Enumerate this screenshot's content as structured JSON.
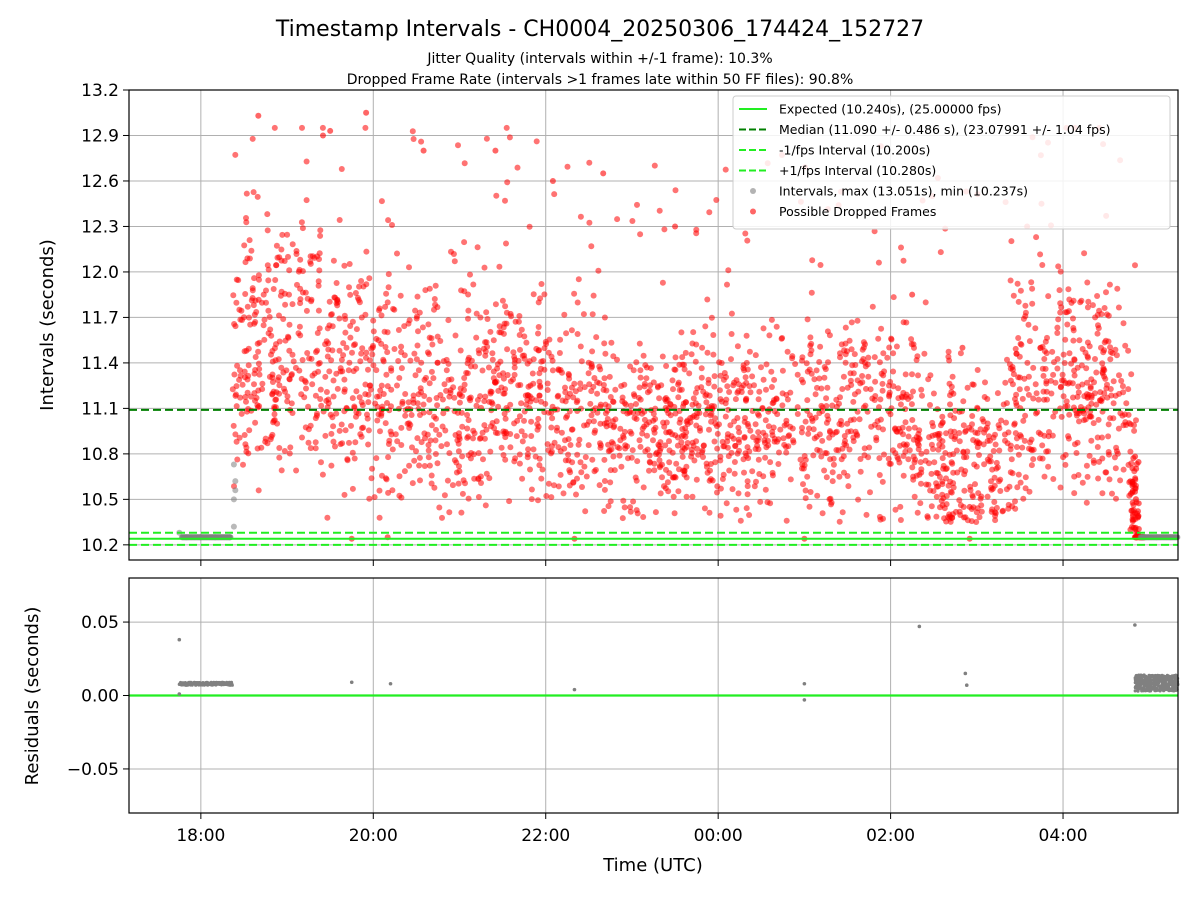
{
  "title": "Timestamp Intervals - CH0004_20250306_174424_152727",
  "subtitle_1": "Jitter Quality (intervals within +/-1 frame): 10.3%",
  "subtitle_2": "Dropped Frame Rate (intervals >1 frames late within 50 FF files): 90.8%",
  "colors": {
    "expected": "#22ee22",
    "median": "#007f00",
    "interval": "#808080",
    "dropped": "#ff0000",
    "grid": "#b0b0b0"
  },
  "chart_data": [
    {
      "type": "scatter",
      "ylabel": "Intervals (seconds)",
      "xlim": [
        "17:10",
        "05:20"
      ],
      "ylim": [
        10.1,
        13.2
      ],
      "y_ticks": [
        "10.2",
        "10.5",
        "10.8",
        "11.1",
        "11.4",
        "11.7",
        "12.0",
        "12.3",
        "12.6",
        "12.9",
        "13.2"
      ],
      "grid": true,
      "legend_position": "top-right",
      "legend": [
        "Expected (10.240s), (25.00000 fps)",
        "Median (11.090 +/- 0.486 s), (23.07991 +/- 1.04 fps)",
        "-1/fps Interval (10.200s)",
        "+1/fps Interval (10.280s)",
        "Intervals, max (13.051s), min (10.237s)",
        "Possible Dropped Frames"
      ],
      "reference_lines": [
        {
          "name": "Expected (10.240s), (25.00000 fps)",
          "y": 10.24,
          "style": "solid"
        },
        {
          "name": "Median (11.090 +/- 0.486 s), (23.07991 +/- 1.04 fps)",
          "y": 11.09,
          "style": "dashed"
        },
        {
          "name": "-1/fps Interval (10.200s)",
          "y": 10.2,
          "style": "dashed"
        },
        {
          "name": "+1/fps Interval (10.280s)",
          "y": 10.28,
          "style": "dashed"
        }
      ],
      "intervals_series": {
        "name": "Intervals, max (13.051s), min (10.237s)",
        "description_points": [
          [
            "17:45",
            10.28
          ],
          [
            "17:50",
            10.25
          ],
          [
            "18:00",
            10.25
          ],
          [
            "18:10",
            10.25
          ],
          [
            "18:20",
            10.25
          ],
          [
            "18:23",
            10.32
          ],
          [
            "18:23",
            10.5
          ],
          [
            "18:24",
            10.56
          ],
          [
            "18:24",
            10.62
          ],
          [
            "18:23",
            10.73
          ],
          [
            "04:55",
            10.25
          ],
          [
            "05:05",
            10.25
          ],
          [
            "05:15",
            10.25
          ]
        ]
      },
      "dropped_series": {
        "name": "Possible Dropped Frames",
        "sample_points": [
          [
            "18:40",
            13.03
          ],
          [
            "19:55",
            13.05
          ],
          [
            "19:25",
            12.9
          ],
          [
            "19:30",
            12.93
          ],
          [
            "20:35",
            12.8
          ],
          [
            "21:25",
            12.8
          ],
          [
            "22:05",
            12.6
          ],
          [
            "22:40",
            12.65
          ],
          [
            "23:30",
            12.3
          ],
          [
            "03:35",
            12.3
          ],
          [
            "03:45",
            12.45
          ],
          [
            "04:30",
            12.37
          ],
          [
            "02:15",
            11.85
          ],
          [
            "02:50",
            11.5
          ],
          [
            "02:55",
            10.45
          ],
          [
            "19:45",
            10.24
          ],
          [
            "20:10",
            10.25
          ],
          [
            "22:20",
            10.24
          ],
          [
            "01:00",
            10.24
          ],
          [
            "02:55",
            10.24
          ]
        ]
      }
    },
    {
      "type": "scatter",
      "xlabel": "Time (UTC)",
      "ylabel": "Residuals (seconds)",
      "xlim": [
        "17:10",
        "05:20"
      ],
      "x_ticks": [
        "18:00",
        "20:00",
        "22:00",
        "00:00",
        "02:00",
        "04:00"
      ],
      "ylim": [
        -0.08,
        0.08
      ],
      "y_ticks": [
        "−0.05",
        "0.00",
        "0.05"
      ],
      "grid": true,
      "zero_line_color": "#22ee22",
      "points": [
        [
          "17:45",
          0.038
        ],
        [
          "17:45",
          0.001
        ],
        [
          "19:45",
          0.009
        ],
        [
          "20:12",
          0.008
        ],
        [
          "22:20",
          0.004
        ],
        [
          "01:00",
          0.008
        ],
        [
          "01:00",
          -0.003
        ],
        [
          "02:20",
          0.047
        ],
        [
          "02:52",
          0.015
        ],
        [
          "02:53",
          0.007
        ],
        [
          "04:50",
          0.048
        ]
      ],
      "clusters": [
        {
          "x_start": "17:45",
          "x_end": "18:22",
          "y": 0.008
        },
        {
          "x_start": "04:50",
          "x_end": "05:20",
          "y_min": 0.003,
          "y_max": 0.014
        }
      ]
    }
  ]
}
